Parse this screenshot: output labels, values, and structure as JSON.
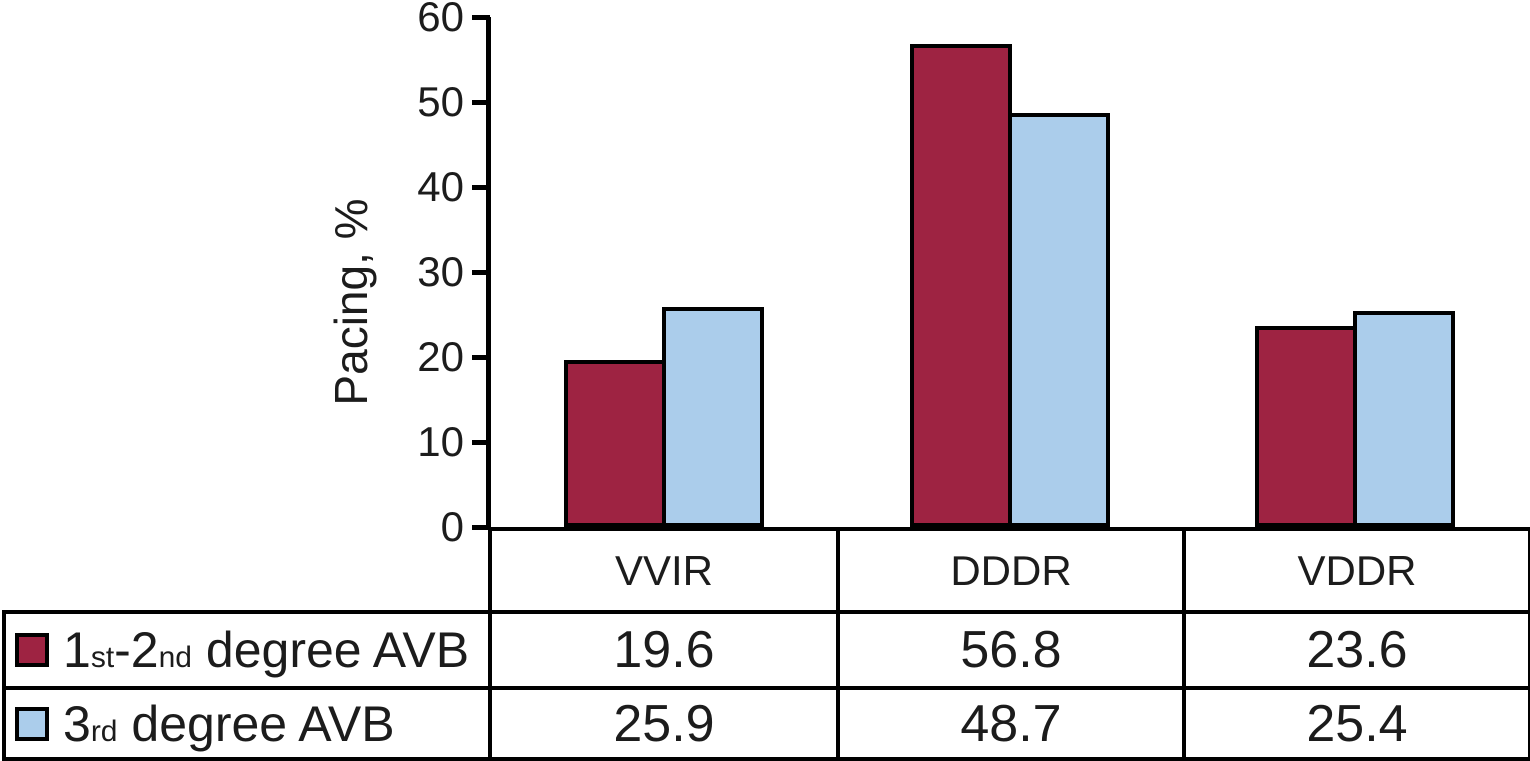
{
  "chart_data": {
    "type": "bar",
    "title": "",
    "xlabel": "",
    "ylabel": "Pacing, %",
    "ylim": [
      0,
      60
    ],
    "yticks": [
      0,
      10,
      20,
      30,
      40,
      50,
      60
    ],
    "grid": false,
    "legend_position": "table-left",
    "categories": [
      "VVIR",
      "DDDR",
      "VDDR"
    ],
    "series": [
      {
        "name": "1st-2nd degree AVB",
        "label_parts": [
          {
            "text": "1",
            "small": false
          },
          {
            "text": "st",
            "small": true
          },
          {
            "text": "-2",
            "small": false
          },
          {
            "text": "nd",
            "small": true
          },
          {
            "text": " degree AVB",
            "small": false
          }
        ],
        "color": "#9E2342",
        "values": [
          19.6,
          56.8,
          23.6
        ]
      },
      {
        "name": "3rd degree AVB",
        "label_parts": [
          {
            "text": "3",
            "small": false
          },
          {
            "text": "rd",
            "small": true
          },
          {
            "text": " degree AVB",
            "small": false
          }
        ],
        "color": "#ABCDEB",
        "values": [
          25.9,
          48.7,
          25.4
        ]
      }
    ],
    "bar_border_color": "#000000",
    "table_border_color": "#000000",
    "value_decimals": 1
  }
}
